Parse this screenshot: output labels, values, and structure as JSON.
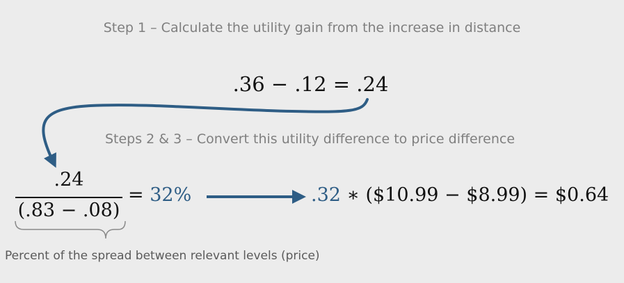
{
  "step1": {
    "heading": "Step 1 – Calculate the utility gain from the increase in distance",
    "equation": ".36 − .12 = .24"
  },
  "steps23": {
    "heading": "Steps 2 & 3 – Convert this utility difference to price difference",
    "fraction_numerator": ".24",
    "fraction_denominator": "(.83 − .08)",
    "equals_percent_prefix": "= ",
    "percent_result": "32%",
    "multiplier": ".32",
    "price_expression": " ∗ ($10.99 − $8.99) = $0.64"
  },
  "brace_note": "Percent of the spread between relevant levels (price)",
  "colors": {
    "background": "#ececec",
    "accent_blue": "#2e5d85",
    "heading_gray": "#7f7f7f"
  }
}
